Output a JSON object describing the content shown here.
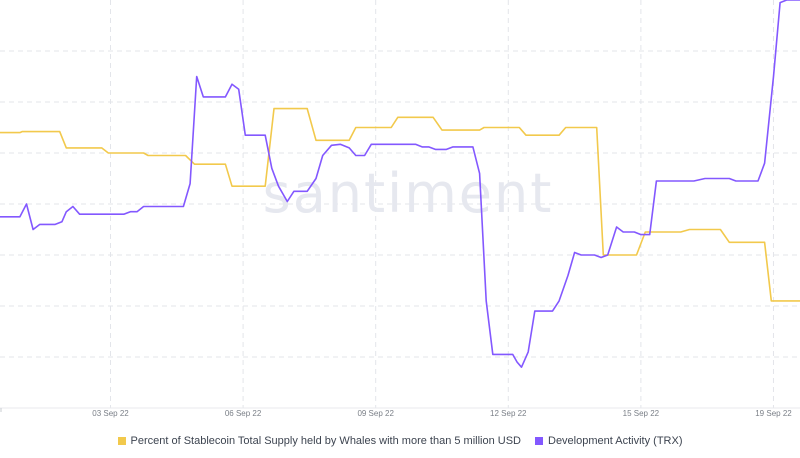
{
  "watermark": "santiment",
  "colors": {
    "whales": "#f2c94c",
    "dev": "#8358ff",
    "grid": "#e3e5ea"
  },
  "legend": [
    {
      "label": "Percent of Stablecoin Total Supply held by Whales with more than 5 million USD",
      "color": "#f2c94c"
    },
    {
      "label": "Development Activity (TRX)",
      "color": "#8358ff"
    }
  ],
  "chart_data": {
    "type": "line",
    "xlabel": "",
    "ylabel": "",
    "xlim": [
      0,
      18.1
    ],
    "ylim": [
      0,
      8
    ],
    "x_ticks": [
      {
        "x": 2.5,
        "label": "03 Sep 22"
      },
      {
        "x": 5.5,
        "label": "06 Sep 22"
      },
      {
        "x": 8.5,
        "label": "09 Sep 22"
      },
      {
        "x": 11.5,
        "label": "12 Sep 22"
      },
      {
        "x": 14.5,
        "label": "15 Sep 22"
      },
      {
        "x": 17.5,
        "label": "19 Sep 22"
      }
    ],
    "grid": true,
    "legend_position": "bottom",
    "series": [
      {
        "name": "Percent of Stablecoin Total Supply held by Whales with more than 5 million USD",
        "color": "#f2c94c",
        "points": [
          [
            0.0,
            5.4
          ],
          [
            0.45,
            5.4
          ],
          [
            0.5,
            5.42
          ],
          [
            1.35,
            5.42
          ],
          [
            1.5,
            5.1
          ],
          [
            2.3,
            5.1
          ],
          [
            2.45,
            5.0
          ],
          [
            3.25,
            5.0
          ],
          [
            3.35,
            4.95
          ],
          [
            4.2,
            4.95
          ],
          [
            4.4,
            4.78
          ],
          [
            5.1,
            4.78
          ],
          [
            5.25,
            4.35
          ],
          [
            6.0,
            4.35
          ],
          [
            6.2,
            5.87
          ],
          [
            6.95,
            5.87
          ],
          [
            7.15,
            5.25
          ],
          [
            7.9,
            5.25
          ],
          [
            8.05,
            5.5
          ],
          [
            8.85,
            5.5
          ],
          [
            9.0,
            5.7
          ],
          [
            9.8,
            5.7
          ],
          [
            10.0,
            5.45
          ],
          [
            10.85,
            5.45
          ],
          [
            10.95,
            5.5
          ],
          [
            11.75,
            5.5
          ],
          [
            11.9,
            5.35
          ],
          [
            12.65,
            5.35
          ],
          [
            12.8,
            5.5
          ],
          [
            13.5,
            5.5
          ],
          [
            13.65,
            3.0
          ],
          [
            14.4,
            3.0
          ],
          [
            14.6,
            3.45
          ],
          [
            15.4,
            3.45
          ],
          [
            15.6,
            3.5
          ],
          [
            16.3,
            3.5
          ],
          [
            16.5,
            3.25
          ],
          [
            17.3,
            3.25
          ],
          [
            17.45,
            2.1
          ],
          [
            18.1,
            2.1
          ]
        ]
      },
      {
        "name": "Development Activity (TRX)",
        "color": "#8358ff",
        "points": [
          [
            0.0,
            3.75
          ],
          [
            0.45,
            3.75
          ],
          [
            0.6,
            4.0
          ],
          [
            0.75,
            3.5
          ],
          [
            0.9,
            3.6
          ],
          [
            1.25,
            3.6
          ],
          [
            1.4,
            3.65
          ],
          [
            1.5,
            3.85
          ],
          [
            1.65,
            3.95
          ],
          [
            1.8,
            3.8
          ],
          [
            2.8,
            3.8
          ],
          [
            2.95,
            3.85
          ],
          [
            3.1,
            3.85
          ],
          [
            3.25,
            3.95
          ],
          [
            4.15,
            3.95
          ],
          [
            4.3,
            4.4
          ],
          [
            4.45,
            6.5
          ],
          [
            4.6,
            6.1
          ],
          [
            5.1,
            6.1
          ],
          [
            5.25,
            6.35
          ],
          [
            5.4,
            6.25
          ],
          [
            5.55,
            5.35
          ],
          [
            6.0,
            5.35
          ],
          [
            6.15,
            4.7
          ],
          [
            6.3,
            4.35
          ],
          [
            6.5,
            4.05
          ],
          [
            6.65,
            4.25
          ],
          [
            6.95,
            4.25
          ],
          [
            7.15,
            4.5
          ],
          [
            7.3,
            4.95
          ],
          [
            7.5,
            5.15
          ],
          [
            7.7,
            5.17
          ],
          [
            7.9,
            5.1
          ],
          [
            8.05,
            4.95
          ],
          [
            8.25,
            4.95
          ],
          [
            8.4,
            5.17
          ],
          [
            9.4,
            5.17
          ],
          [
            9.55,
            5.12
          ],
          [
            9.7,
            5.12
          ],
          [
            9.85,
            5.07
          ],
          [
            10.1,
            5.07
          ],
          [
            10.25,
            5.12
          ],
          [
            10.7,
            5.12
          ],
          [
            10.85,
            4.6
          ],
          [
            11.0,
            2.1
          ],
          [
            11.15,
            1.05
          ],
          [
            11.6,
            1.05
          ],
          [
            11.7,
            0.9
          ],
          [
            11.8,
            0.8
          ],
          [
            11.95,
            1.1
          ],
          [
            12.1,
            1.9
          ],
          [
            12.5,
            1.9
          ],
          [
            12.65,
            2.1
          ],
          [
            12.85,
            2.6
          ],
          [
            13.0,
            3.05
          ],
          [
            13.15,
            3.0
          ],
          [
            13.45,
            3.0
          ],
          [
            13.6,
            2.95
          ],
          [
            13.75,
            3.0
          ],
          [
            13.95,
            3.55
          ],
          [
            14.1,
            3.45
          ],
          [
            14.35,
            3.45
          ],
          [
            14.5,
            3.4
          ],
          [
            14.7,
            3.4
          ],
          [
            14.85,
            4.45
          ],
          [
            15.7,
            4.45
          ],
          [
            15.95,
            4.5
          ],
          [
            16.5,
            4.5
          ],
          [
            16.65,
            4.45
          ],
          [
            17.15,
            4.45
          ],
          [
            17.3,
            4.8
          ],
          [
            17.5,
            6.5
          ],
          [
            17.65,
            7.95
          ],
          [
            17.8,
            8.0
          ],
          [
            18.1,
            8.0
          ]
        ]
      }
    ]
  }
}
